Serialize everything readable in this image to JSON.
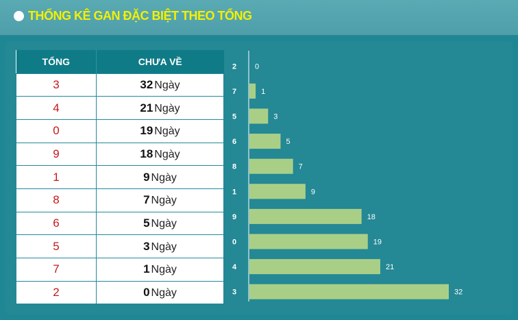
{
  "header": {
    "title": "THỐNG KÊ GAN ĐẶC BIỆT THEO TỔNG",
    "dot_icon": "circle-bullet-icon",
    "title_color": "#f4f000"
  },
  "table": {
    "col_sum": "TỔNG",
    "col_days": "CHƯA VỀ",
    "unit": "Ngày",
    "rows": [
      {
        "sum": "3",
        "days": "32"
      },
      {
        "sum": "4",
        "days": "21"
      },
      {
        "sum": "0",
        "days": "19"
      },
      {
        "sum": "9",
        "days": "18"
      },
      {
        "sum": "1",
        "days": "9"
      },
      {
        "sum": "8",
        "days": "7"
      },
      {
        "sum": "6",
        "days": "5"
      },
      {
        "sum": "5",
        "days": "3"
      },
      {
        "sum": "7",
        "days": "1"
      },
      {
        "sum": "2",
        "days": "0"
      }
    ]
  },
  "chart_data": {
    "type": "bar",
    "orientation": "horizontal",
    "categories": [
      "2",
      "7",
      "5",
      "6",
      "8",
      "1",
      "9",
      "0",
      "4",
      "3"
    ],
    "values": [
      0,
      1,
      3,
      5,
      7,
      9,
      18,
      19,
      21,
      32
    ],
    "xlim": [
      0,
      32
    ],
    "bar_color": "#a9cf87",
    "grid": false,
    "legend": "none"
  }
}
